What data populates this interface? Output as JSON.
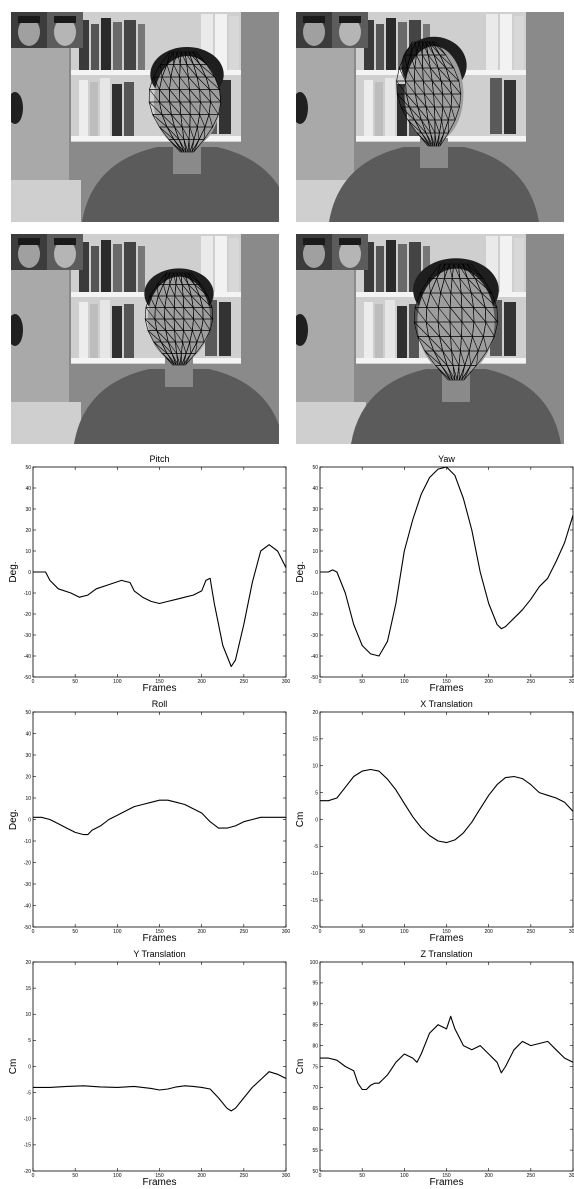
{
  "photos": [
    {
      "id": "frame-1",
      "description": "video frame of man with face mesh overlay, head turned slightly right"
    },
    {
      "id": "frame-2",
      "description": "video frame of man with face mesh overlay, head turned left"
    },
    {
      "id": "frame-3",
      "description": "video frame of man with face mesh overlay, head tilted"
    },
    {
      "id": "frame-4",
      "description": "video frame of man with face mesh overlay, close to camera"
    }
  ],
  "chart_data": [
    {
      "type": "line",
      "title": "Pitch",
      "xlabel": "Frames",
      "ylabel": "Deg.",
      "xlim": [
        0,
        300
      ],
      "ylim": [
        -50,
        50
      ],
      "xticks": [
        0,
        50,
        100,
        150,
        200,
        250,
        300
      ],
      "yticks": [
        -50,
        -40,
        -30,
        -20,
        -10,
        0,
        10,
        20,
        30,
        40,
        50
      ],
      "series": [
        {
          "x": [
            0,
            15,
            20,
            30,
            45,
            55,
            65,
            75,
            90,
            105,
            115,
            120,
            130,
            140,
            150,
            160,
            170,
            180,
            190,
            200,
            205,
            210,
            215,
            225,
            235,
            240,
            250,
            260,
            270,
            280,
            290,
            300
          ],
          "y": [
            0,
            0,
            -4,
            -8,
            -10,
            -12,
            -11,
            -8,
            -6,
            -4,
            -5,
            -9,
            -12,
            -14,
            -15,
            -14,
            -13,
            -12,
            -11,
            -9,
            -4,
            -3,
            -15,
            -35,
            -45,
            -42,
            -25,
            -5,
            10,
            13,
            10,
            2
          ]
        }
      ]
    },
    {
      "type": "line",
      "title": "Yaw",
      "xlabel": "Frames",
      "ylabel": "Deg.",
      "xlim": [
        0,
        300
      ],
      "ylim": [
        -50,
        50
      ],
      "xticks": [
        0,
        50,
        100,
        150,
        200,
        250,
        300
      ],
      "yticks": [
        -50,
        -40,
        -30,
        -20,
        -10,
        0,
        10,
        20,
        30,
        40,
        50
      ],
      "series": [
        {
          "x": [
            0,
            5,
            10,
            15,
            20,
            30,
            40,
            50,
            60,
            70,
            80,
            90,
            100,
            110,
            120,
            130,
            140,
            150,
            160,
            170,
            180,
            190,
            200,
            210,
            215,
            220,
            230,
            240,
            250,
            260,
            270,
            280,
            290,
            300
          ],
          "y": [
            0,
            0,
            0,
            1,
            0,
            -10,
            -25,
            -35,
            -39,
            -40,
            -33,
            -15,
            10,
            25,
            37,
            45,
            49,
            50,
            46,
            35,
            20,
            0,
            -15,
            -25,
            -27,
            -26,
            -22,
            -18,
            -13,
            -7,
            -3,
            5,
            14,
            27
          ]
        }
      ]
    },
    {
      "type": "line",
      "title": "Roll",
      "xlabel": "Frames",
      "ylabel": "Deg.",
      "xlim": [
        0,
        300
      ],
      "ylim": [
        -50,
        50
      ],
      "xticks": [
        0,
        50,
        100,
        150,
        200,
        250,
        300
      ],
      "yticks": [
        -50,
        -40,
        -30,
        -20,
        -10,
        0,
        10,
        20,
        30,
        40,
        50
      ],
      "series": [
        {
          "x": [
            0,
            10,
            20,
            30,
            40,
            50,
            60,
            65,
            70,
            80,
            90,
            100,
            110,
            120,
            130,
            140,
            150,
            160,
            170,
            180,
            190,
            200,
            210,
            220,
            230,
            240,
            250,
            260,
            270,
            280,
            290,
            300
          ],
          "y": [
            1,
            1,
            0,
            -2,
            -4,
            -6,
            -7,
            -7,
            -5,
            -3,
            0,
            2,
            4,
            6,
            7,
            8,
            9,
            9,
            8,
            7,
            5,
            3,
            -1,
            -4,
            -4,
            -3,
            -1,
            0,
            1,
            1,
            1,
            1
          ]
        }
      ]
    },
    {
      "type": "line",
      "title": "X Translation",
      "xlabel": "Frames",
      "ylabel": "Cm",
      "xlim": [
        0,
        300
      ],
      "ylim": [
        -20,
        20
      ],
      "xticks": [
        0,
        50,
        100,
        150,
        200,
        250,
        300
      ],
      "yticks": [
        -20,
        -15,
        -10,
        -5,
        0,
        5,
        10,
        15,
        20
      ],
      "series": [
        {
          "x": [
            0,
            10,
            20,
            30,
            40,
            50,
            60,
            70,
            80,
            90,
            100,
            110,
            120,
            130,
            140,
            150,
            160,
            170,
            180,
            190,
            200,
            210,
            220,
            230,
            240,
            250,
            260,
            270,
            280,
            290,
            300
          ],
          "y": [
            3.5,
            3.5,
            4,
            6,
            8,
            9,
            9.3,
            9,
            7.5,
            5.5,
            3,
            0.5,
            -1.5,
            -3,
            -4,
            -4.3,
            -3.8,
            -2.5,
            -0.5,
            2,
            4.5,
            6.5,
            7.8,
            8,
            7.6,
            6.5,
            5,
            4.5,
            4,
            3.2,
            1.5
          ]
        }
      ]
    },
    {
      "type": "line",
      "title": "Y Translation",
      "xlabel": "Frames",
      "ylabel": "Cm",
      "xlim": [
        0,
        300
      ],
      "ylim": [
        -20,
        20
      ],
      "xticks": [
        0,
        50,
        100,
        150,
        200,
        250,
        300
      ],
      "yticks": [
        -20,
        -15,
        -10,
        -5,
        0,
        5,
        10,
        15,
        20
      ],
      "series": [
        {
          "x": [
            0,
            20,
            40,
            60,
            80,
            100,
            120,
            140,
            150,
            160,
            170,
            180,
            190,
            200,
            210,
            220,
            230,
            235,
            240,
            250,
            260,
            270,
            280,
            290,
            300
          ],
          "y": [
            -4,
            -4,
            -3.8,
            -3.7,
            -3.9,
            -4,
            -3.8,
            -4.2,
            -4.5,
            -4.3,
            -3.9,
            -3.7,
            -3.8,
            -4,
            -4.3,
            -6,
            -8,
            -8.5,
            -8,
            -6,
            -4,
            -2.5,
            -1,
            -1.5,
            -2.3
          ]
        }
      ]
    },
    {
      "type": "line",
      "title": "Z Translation",
      "xlabel": "Frames",
      "ylabel": "Cm",
      "xlim": [
        0,
        300
      ],
      "ylim": [
        50,
        100
      ],
      "xticks": [
        0,
        50,
        100,
        150,
        200,
        250,
        300
      ],
      "yticks": [
        50,
        55,
        60,
        65,
        70,
        75,
        80,
        85,
        90,
        95,
        100
      ],
      "series": [
        {
          "x": [
            0,
            10,
            20,
            30,
            40,
            45,
            50,
            55,
            60,
            65,
            70,
            80,
            90,
            100,
            110,
            115,
            120,
            130,
            140,
            150,
            155,
            160,
            165,
            170,
            180,
            190,
            200,
            210,
            215,
            220,
            230,
            240,
            250,
            260,
            270,
            280,
            290,
            300
          ],
          "y": [
            77,
            77,
            76.5,
            75,
            74,
            71,
            69.5,
            69.5,
            70.5,
            71,
            71,
            73,
            76,
            78,
            77,
            76,
            78,
            83,
            85,
            84,
            87,
            84,
            82,
            80,
            79,
            80,
            78,
            76,
            73.5,
            75,
            79,
            81,
            80,
            80.5,
            81,
            79,
            77,
            76
          ]
        }
      ]
    }
  ]
}
